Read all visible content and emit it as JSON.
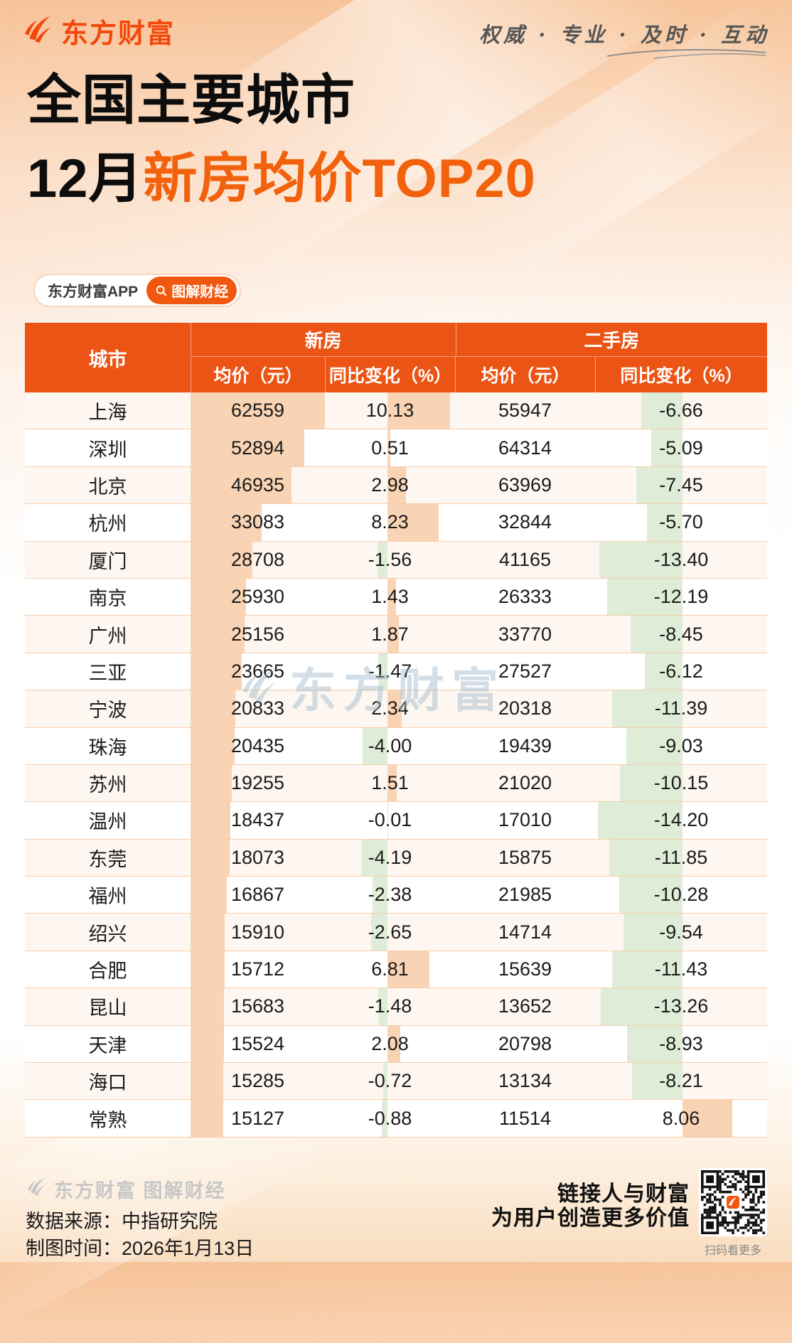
{
  "header": {
    "logo_text": "东方财富",
    "tagline": "权威 · 专业 · 及时 · 互动"
  },
  "title": {
    "line1": "全国主要城市",
    "line2_prefix": "12月",
    "line2_highlight": "新房均价TOP20"
  },
  "badges": {
    "app_label": "东方财富APP",
    "channel_label": "图解财经"
  },
  "table": {
    "header": {
      "city": "城市",
      "group_new": "新房",
      "group_used": "二手房",
      "sub_price": "均价（元）",
      "sub_change": "同比变化（%）"
    },
    "rows": [
      {
        "city": "上海",
        "new_price": "62559",
        "new_change": "10.13",
        "used_price": "55947",
        "used_change": "-6.66"
      },
      {
        "city": "深圳",
        "new_price": "52894",
        "new_change": "0.51",
        "used_price": "64314",
        "used_change": "-5.09"
      },
      {
        "city": "北京",
        "new_price": "46935",
        "new_change": "2.98",
        "used_price": "63969",
        "used_change": "-7.45"
      },
      {
        "city": "杭州",
        "new_price": "33083",
        "new_change": "8.23",
        "used_price": "32844",
        "used_change": "-5.70"
      },
      {
        "city": "厦门",
        "new_price": "28708",
        "new_change": "-1.56",
        "used_price": "41165",
        "used_change": "-13.40"
      },
      {
        "city": "南京",
        "new_price": "25930",
        "new_change": "1.43",
        "used_price": "26333",
        "used_change": "-12.19"
      },
      {
        "city": "广州",
        "new_price": "25156",
        "new_change": "1.87",
        "used_price": "33770",
        "used_change": "-8.45"
      },
      {
        "city": "三亚",
        "new_price": "23665",
        "new_change": "-1.47",
        "used_price": "27527",
        "used_change": "-6.12"
      },
      {
        "city": "宁波",
        "new_price": "20833",
        "new_change": "2.34",
        "used_price": "20318",
        "used_change": "-11.39"
      },
      {
        "city": "珠海",
        "new_price": "20435",
        "new_change": "-4.00",
        "used_price": "19439",
        "used_change": "-9.03"
      },
      {
        "city": "苏州",
        "new_price": "19255",
        "new_change": "1.51",
        "used_price": "21020",
        "used_change": "-10.15"
      },
      {
        "city": "温州",
        "new_price": "18437",
        "new_change": "-0.01",
        "used_price": "17010",
        "used_change": "-14.20"
      },
      {
        "city": "东莞",
        "new_price": "18073",
        "new_change": "-4.19",
        "used_price": "15875",
        "used_change": "-11.85"
      },
      {
        "city": "福州",
        "new_price": "16867",
        "new_change": "-2.38",
        "used_price": "21985",
        "used_change": "-10.28"
      },
      {
        "city": "绍兴",
        "new_price": "15910",
        "new_change": "-2.65",
        "used_price": "14714",
        "used_change": "-9.54"
      },
      {
        "city": "合肥",
        "new_price": "15712",
        "new_change": "6.81",
        "used_price": "15639",
        "used_change": "-11.43"
      },
      {
        "city": "昆山",
        "new_price": "15683",
        "new_change": "-1.48",
        "used_price": "13652",
        "used_change": "-13.26"
      },
      {
        "city": "天津",
        "new_price": "15524",
        "new_change": "2.08",
        "used_price": "20798",
        "used_change": "-8.93"
      },
      {
        "city": "海口",
        "new_price": "15285",
        "new_change": "-0.72",
        "used_price": "13134",
        "used_change": "-8.21"
      },
      {
        "city": "常熟",
        "new_price": "15127",
        "new_change": "-0.88",
        "used_price": "11514",
        "used_change": "8.06"
      }
    ]
  },
  "watermark": {
    "text": "东方财富"
  },
  "footer": {
    "brand": "东方财富 图解财经",
    "source": "数据来源：中指研究院",
    "date": "制图时间：2026年1月13日",
    "slogan1": "链接人与财富",
    "slogan2": "为用户创造更多价值",
    "qr_caption": "扫码看更多"
  },
  "colors": {
    "header_orange": "#EB5414",
    "title_accent": "#F2610C",
    "logo_orange": "#F3480C",
    "bar_positive_peach": "#F8D3B4",
    "bar_negative_green": "#DFEDD8",
    "row_stripe_cream": "#FEF7F1",
    "row_divider": "#F8CDA9",
    "watermark_blue": "#9FB7CB"
  },
  "chart_data": {
    "type": "table",
    "title": "全国主要城市12月新房均价TOP20",
    "columns": [
      "城市",
      "新房均价（元）",
      "新房同比变化（%）",
      "二手房均价（元）",
      "二手房同比变化（%）"
    ],
    "column_groups": [
      "城市",
      "新房",
      "二手房"
    ],
    "rows": [
      [
        "上海",
        62559,
        10.13,
        55947,
        -6.66
      ],
      [
        "深圳",
        52894,
        0.51,
        64314,
        -5.09
      ],
      [
        "北京",
        46935,
        2.98,
        63969,
        -7.45
      ],
      [
        "杭州",
        33083,
        8.23,
        32844,
        -5.7
      ],
      [
        "厦门",
        28708,
        -1.56,
        41165,
        -13.4
      ],
      [
        "南京",
        25930,
        1.43,
        26333,
        -12.19
      ],
      [
        "广州",
        25156,
        1.87,
        33770,
        -8.45
      ],
      [
        "三亚",
        23665,
        -1.47,
        27527,
        -6.12
      ],
      [
        "宁波",
        20833,
        2.34,
        20318,
        -11.39
      ],
      [
        "珠海",
        20435,
        -4.0,
        19439,
        -9.03
      ],
      [
        "苏州",
        19255,
        1.51,
        21020,
        -10.15
      ],
      [
        "温州",
        18437,
        -0.01,
        17010,
        -14.2
      ],
      [
        "东莞",
        18073,
        -4.19,
        15875,
        -11.85
      ],
      [
        "福州",
        16867,
        -2.38,
        21985,
        -10.28
      ],
      [
        "绍兴",
        15910,
        -2.65,
        14714,
        -9.54
      ],
      [
        "合肥",
        15712,
        6.81,
        15639,
        -11.43
      ],
      [
        "昆山",
        15683,
        -1.48,
        13652,
        -13.26
      ],
      [
        "天津",
        15524,
        2.08,
        20798,
        -8.93
      ],
      [
        "海口",
        15285,
        -0.72,
        13134,
        -8.21
      ],
      [
        "常熟",
        15127,
        -0.88,
        11514,
        8.06
      ]
    ],
    "bar_encoding": {
      "new_price_column": "left-anchored peach bar, width proportional to value / 62559 (column max)",
      "change_columns": "diverging bar from mid-cell axis: positive = peach to the right, negative = green to the left, ~8.7px per percentage point"
    }
  }
}
